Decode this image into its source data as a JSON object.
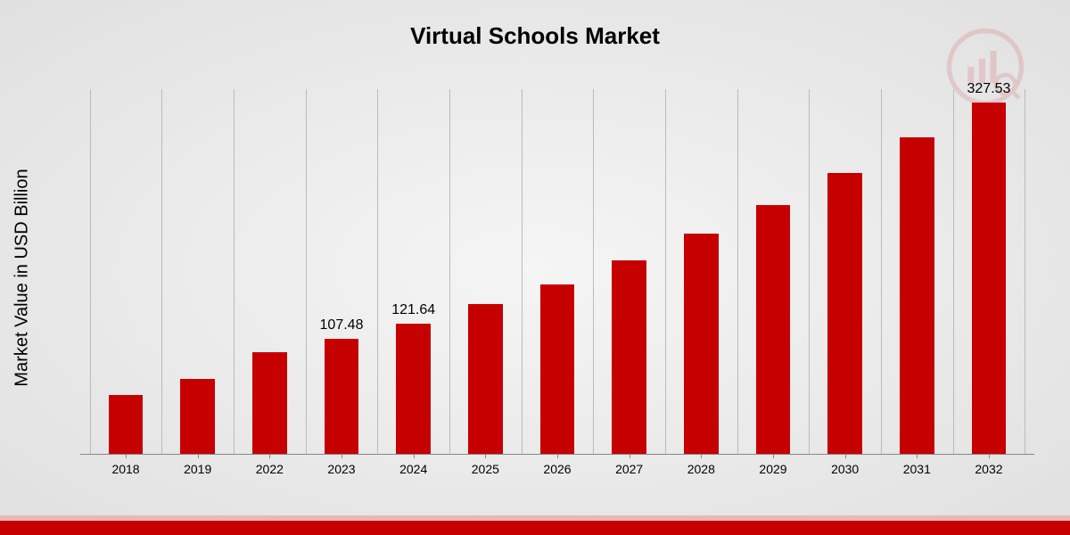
{
  "chart": {
    "type": "bar",
    "title": "Virtual Schools Market",
    "title_fontsize": 26,
    "y_axis_label": "Market Value in USD Billion",
    "y_axis_fontsize": 20,
    "background_gradient": [
      "#f5f5f5",
      "#e0e0e0"
    ],
    "bar_color": "#c60000",
    "grid_color": "#bbbbbb",
    "axis_color": "#888888",
    "text_color": "#000000",
    "max_value": 340,
    "categories": [
      "2018",
      "2019",
      "2022",
      "2023",
      "2024",
      "2025",
      "2026",
      "2027",
      "2028",
      "2029",
      "2030",
      "2031",
      "2032"
    ],
    "values": [
      55,
      70,
      95,
      107.48,
      121.64,
      140,
      158,
      180,
      205,
      232,
      262,
      295,
      327.53
    ],
    "value_labels": {
      "3": "107.48",
      "4": "121.64",
      "12": "327.53"
    },
    "bar_width_pct": 3.6,
    "x_tick_fontsize": 14,
    "value_label_fontsize": 16,
    "bottom_accent_color": "#c60000",
    "bottom_accent_light": "#e8b8b8"
  }
}
